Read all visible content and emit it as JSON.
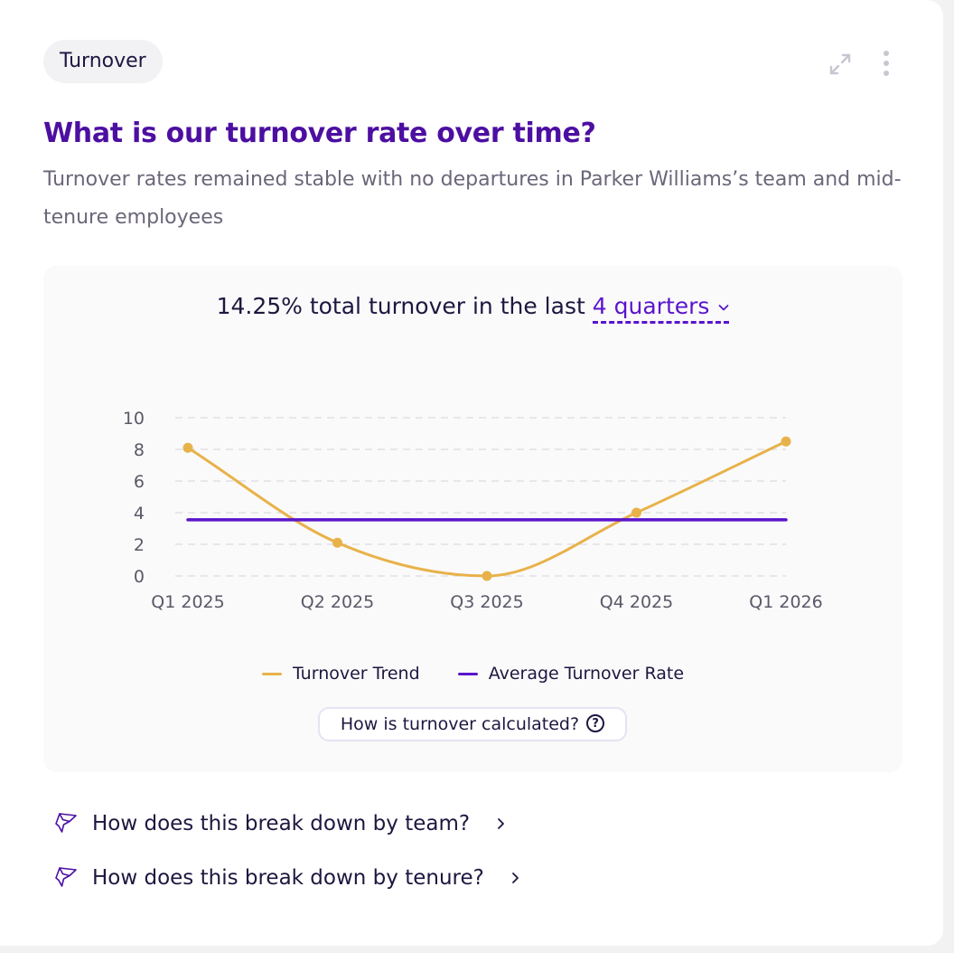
{
  "card": {
    "tag": "Turnover",
    "title": "What is our turnover rate over time?",
    "subtitle": "Turnover rates remained stable with no departures in Parker Williams’s team and mid-tenure employees"
  },
  "icons": {
    "expand": "expand-icon",
    "more": "more-vertical-icon",
    "chevron": "chevron-down-icon",
    "help": "question-circle-icon",
    "sparkle": "sparkle-icon",
    "arrow": "chevron-right-icon"
  },
  "summary": {
    "text": "14.25% total turnover in the last",
    "period": "4 quarters"
  },
  "chart_data": {
    "type": "line",
    "categories": [
      "Q1 2025",
      "Q2 2025",
      "Q3 2025",
      "Q4 2025",
      "Q1 2026"
    ],
    "series": [
      {
        "name": "Turnover Trend",
        "values": [
          8.1,
          2.1,
          0.0,
          4.0,
          8.5
        ],
        "color": "#e8b24a",
        "smooth": true
      },
      {
        "name": "Average Turnover Rate",
        "values": [
          3.55,
          3.55,
          3.55,
          3.55,
          3.55
        ],
        "color": "#5a14cc",
        "smooth": false
      }
    ],
    "yticks": [
      0,
      2,
      4,
      6,
      8,
      10
    ],
    "ylim": [
      0,
      10
    ],
    "grid": true,
    "legend_position": "bottom-center"
  },
  "help_button": {
    "label": "How is turnover calculated?",
    "icon_glyph": "?"
  },
  "followups": [
    {
      "label": "How does this break down by team?"
    },
    {
      "label": "How does this break down by tenure?"
    }
  ],
  "colors": {
    "accent": "#5a14cc",
    "title": "#4c0fa1",
    "trend": "#e8b24a",
    "text": "#1d1740",
    "muted": "#6b6679"
  }
}
